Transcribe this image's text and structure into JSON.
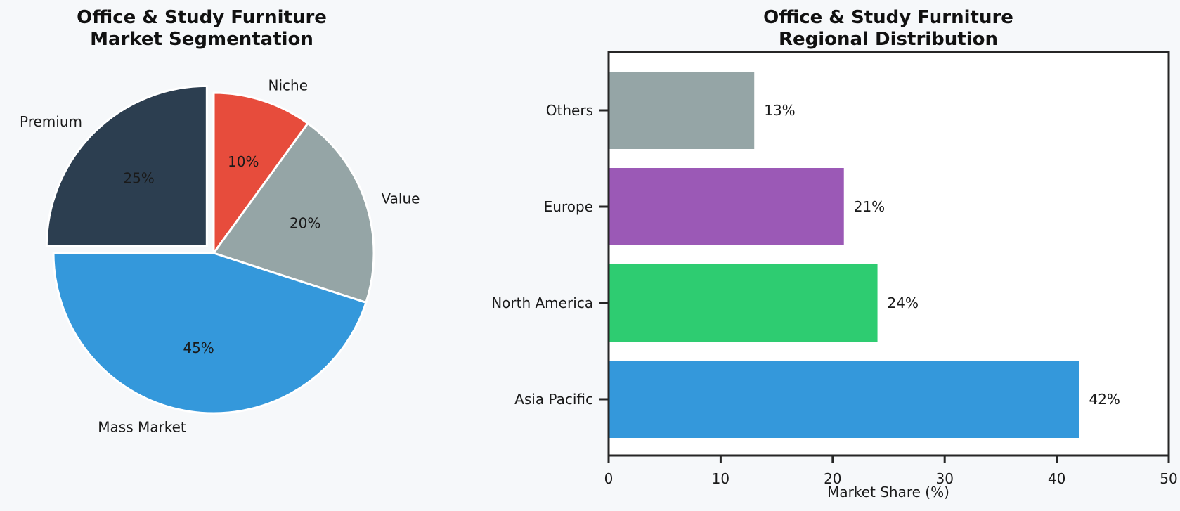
{
  "figure": {
    "background_color": "#f6f8fa",
    "plot_background_color": "#ffffff",
    "spine_color": "#262626",
    "text_color": "#1a1a1a"
  },
  "chart_data": [
    {
      "type": "pie",
      "title_lines": [
        "Office & Study Furniture",
        "Market Segmentation"
      ],
      "labels": [
        "Niche",
        "Value",
        "Mass Market",
        "Premium"
      ],
      "values": [
        10,
        20,
        45,
        25
      ],
      "pct_labels": [
        "10%",
        "20%",
        "45%",
        "25%"
      ],
      "colors": [
        "#e74c3c",
        "#95a5a6",
        "#3498db",
        "#2c3e50"
      ],
      "explode": [
        0,
        0,
        0,
        0.06
      ],
      "start_angle": 90,
      "direction": "clockwise",
      "wedge_edge_color": "#ffffff"
    },
    {
      "type": "bar",
      "orientation": "horizontal",
      "title_lines": [
        "Office & Study Furniture",
        "Regional Distribution"
      ],
      "categories_bottom_to_top": [
        "Asia Pacific",
        "North America",
        "Europe",
        "Others"
      ],
      "values": [
        42,
        24,
        21,
        13
      ],
      "value_labels": [
        "42%",
        "24%",
        "21%",
        "13%"
      ],
      "colors": [
        "#3498db",
        "#2ecc71",
        "#9b59b6",
        "#95a5a6"
      ],
      "xlabel": "Market Share (%)",
      "xlim": [
        0,
        50
      ],
      "xticks": [
        0,
        10,
        20,
        30,
        40,
        50
      ],
      "xtick_labels": [
        "0",
        "10",
        "20",
        "30",
        "40",
        "50"
      ],
      "grid": false,
      "legend": "none"
    }
  ]
}
